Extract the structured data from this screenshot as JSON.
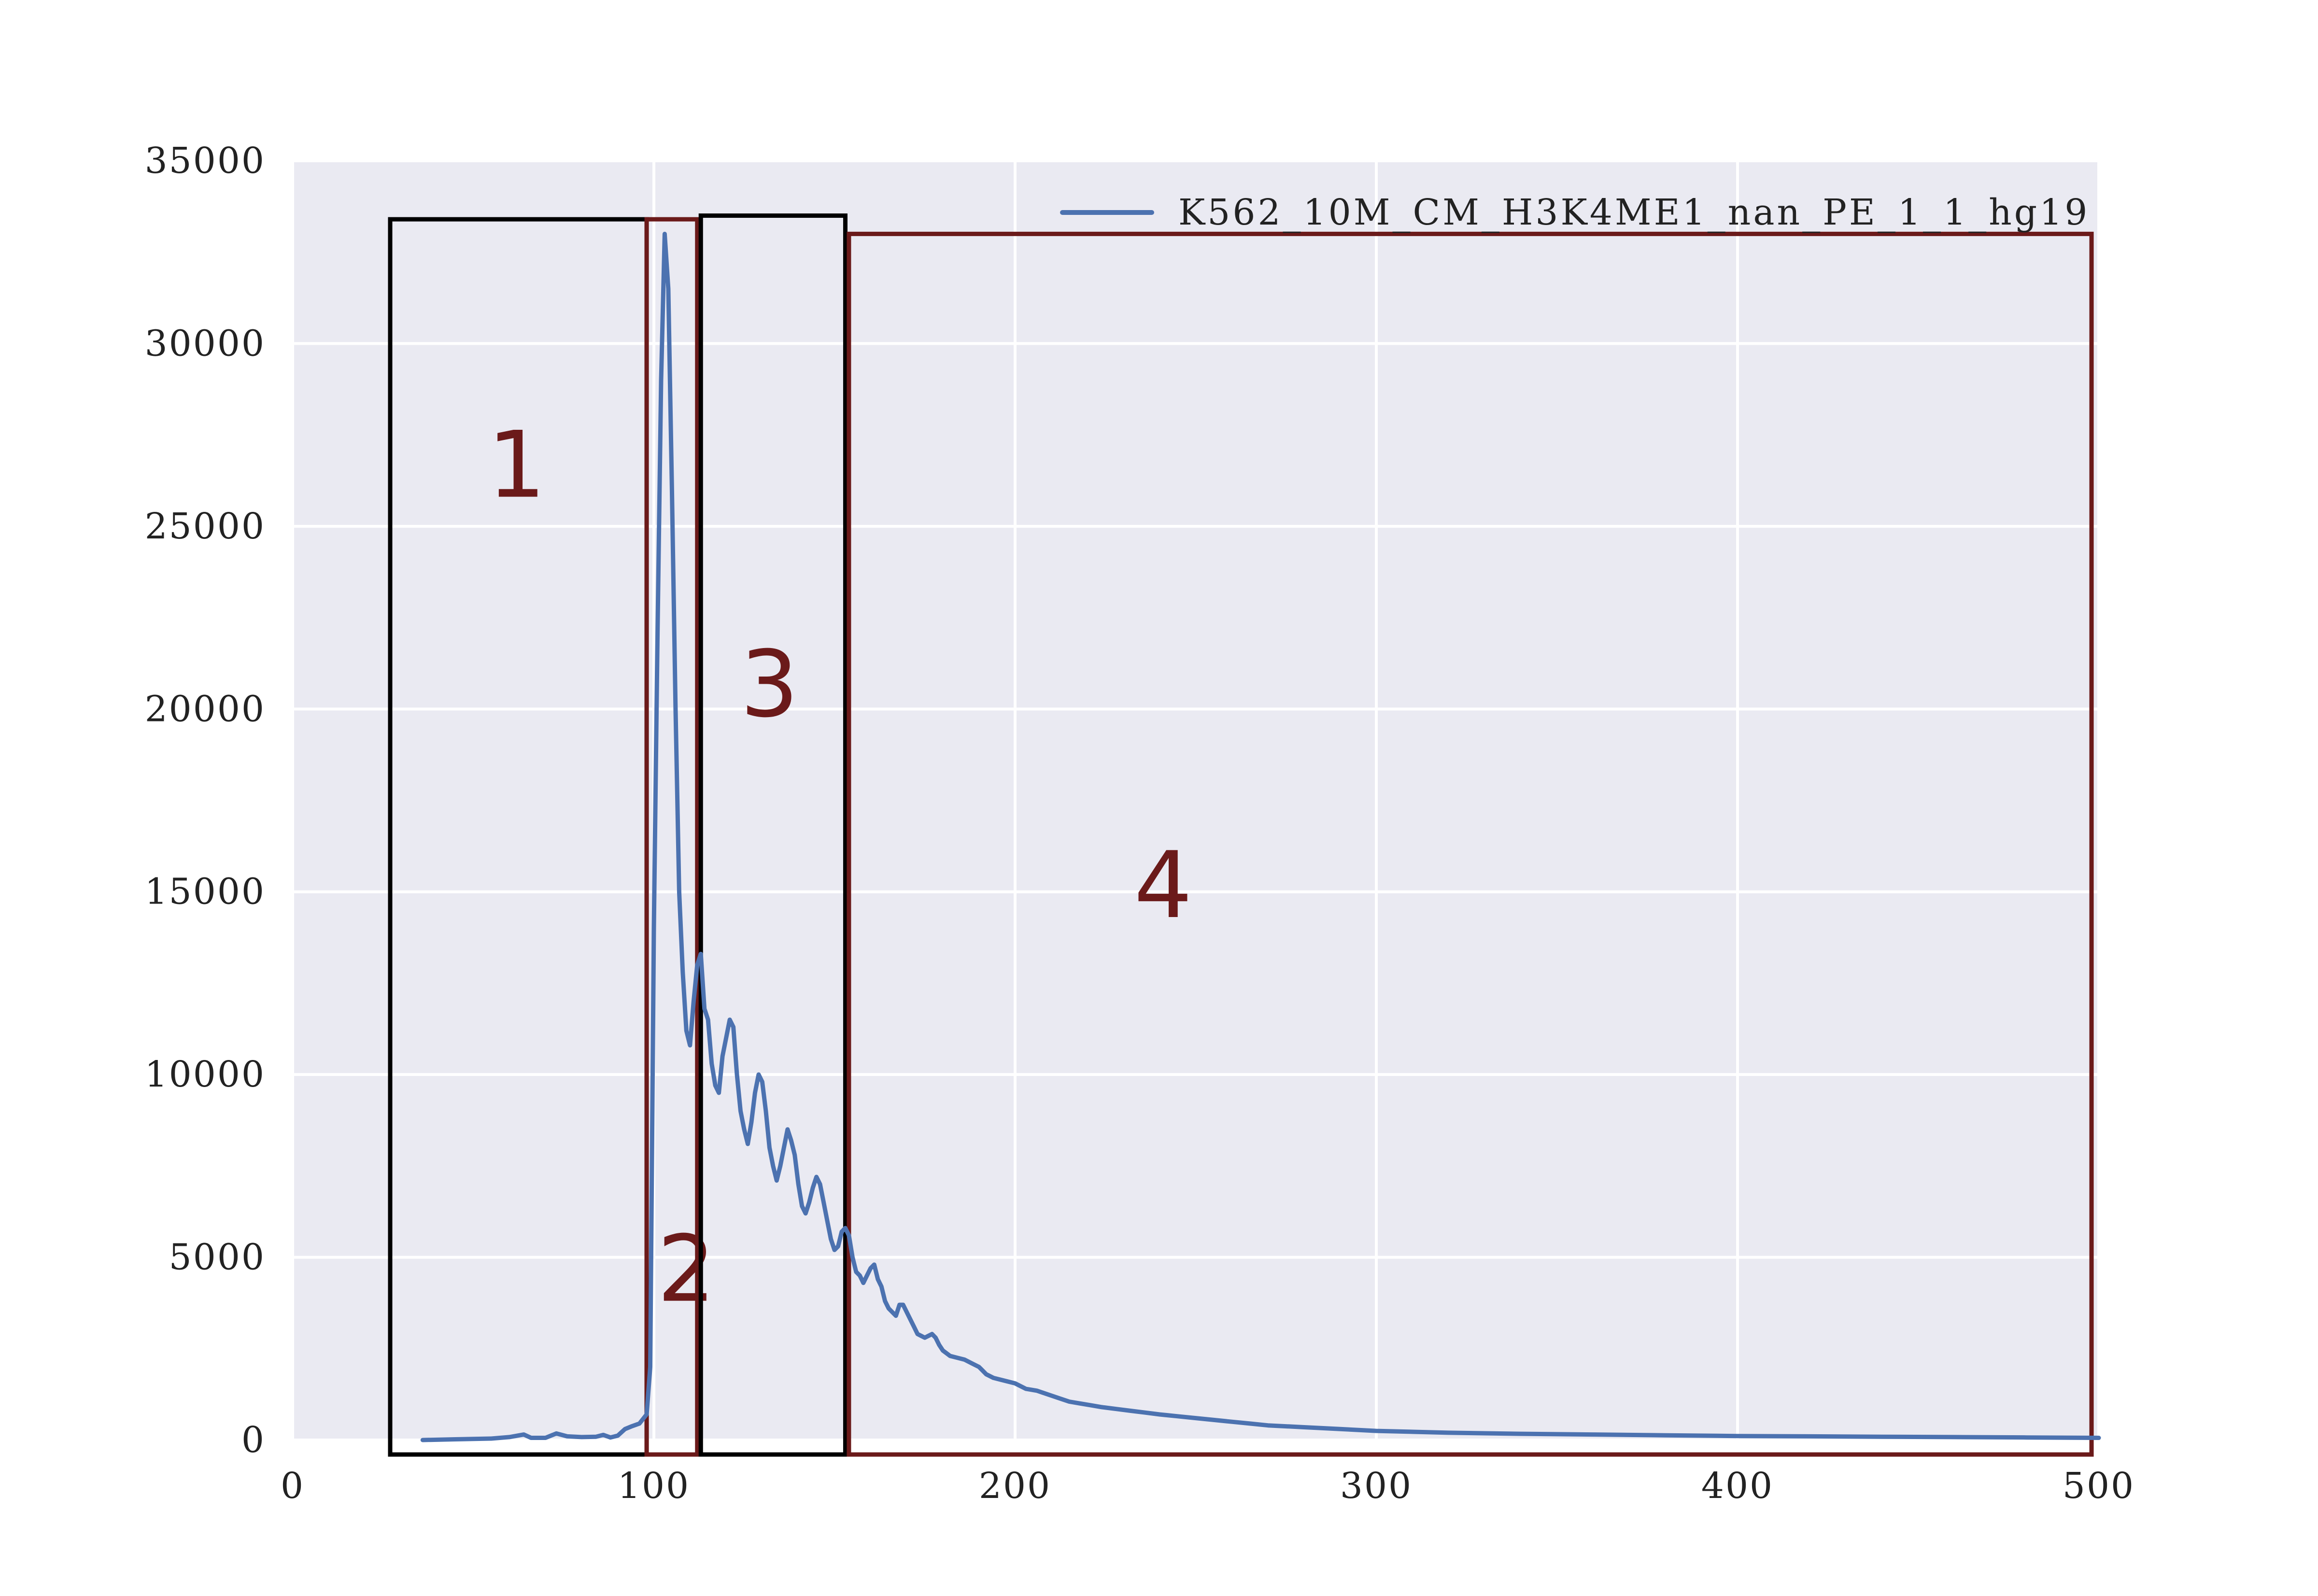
{
  "chart_data": {
    "type": "line",
    "title": "",
    "xlabel": "",
    "ylabel": "",
    "xlim": [
      0,
      500
    ],
    "ylim": [
      0,
      35000
    ],
    "xticks": [
      0,
      100,
      200,
      300,
      400,
      500
    ],
    "yticks": [
      0,
      5000,
      10000,
      15000,
      20000,
      25000,
      30000,
      35000
    ],
    "grid": true,
    "legend_position": "top-right",
    "colors": {
      "background": "#eaeaf2",
      "grid": "#ffffff",
      "line": "#4c72b0",
      "box_black": "#000000",
      "box_red": "#6b1a1a",
      "region_label": "#6b1a1a",
      "tick_label": "#222222"
    },
    "series": [
      {
        "name": "K562_10M_CM_H3K4ME1_nan_PE_1_1_hg19",
        "points": [
          [
            36,
            0
          ],
          [
            45,
            20
          ],
          [
            55,
            40
          ],
          [
            60,
            80
          ],
          [
            64,
            150
          ],
          [
            66,
            60
          ],
          [
            70,
            60
          ],
          [
            73,
            180
          ],
          [
            76,
            100
          ],
          [
            80,
            80
          ],
          [
            84,
            90
          ],
          [
            86,
            140
          ],
          [
            88,
            70
          ],
          [
            90,
            120
          ],
          [
            92,
            300
          ],
          [
            94,
            380
          ],
          [
            96,
            450
          ],
          [
            98,
            700
          ],
          [
            99,
            2000
          ],
          [
            100,
            14000
          ],
          [
            101,
            22000
          ],
          [
            102,
            29000
          ],
          [
            103,
            33000
          ],
          [
            104,
            31500
          ],
          [
            105,
            26000
          ],
          [
            106,
            20000
          ],
          [
            107,
            15000
          ],
          [
            108,
            12800
          ],
          [
            109,
            11200
          ],
          [
            110,
            10800
          ],
          [
            111,
            12000
          ],
          [
            112,
            13000
          ],
          [
            113,
            13300
          ],
          [
            114,
            11800
          ],
          [
            115,
            11500
          ],
          [
            116,
            10300
          ],
          [
            117,
            9700
          ],
          [
            118,
            9500
          ],
          [
            119,
            10500
          ],
          [
            120,
            11000
          ],
          [
            121,
            11500
          ],
          [
            122,
            11300
          ],
          [
            123,
            10000
          ],
          [
            124,
            9000
          ],
          [
            125,
            8500
          ],
          [
            126,
            8100
          ],
          [
            127,
            8700
          ],
          [
            128,
            9500
          ],
          [
            129,
            10000
          ],
          [
            130,
            9800
          ],
          [
            131,
            9000
          ],
          [
            132,
            8000
          ],
          [
            133,
            7500
          ],
          [
            134,
            7100
          ],
          [
            135,
            7500
          ],
          [
            136,
            8000
          ],
          [
            137,
            8500
          ],
          [
            138,
            8200
          ],
          [
            139,
            7800
          ],
          [
            140,
            7000
          ],
          [
            141,
            6400
          ],
          [
            142,
            6200
          ],
          [
            143,
            6500
          ],
          [
            144,
            6900
          ],
          [
            145,
            7200
          ],
          [
            146,
            7000
          ],
          [
            147,
            6500
          ],
          [
            148,
            6000
          ],
          [
            149,
            5500
          ],
          [
            150,
            5200
          ],
          [
            151,
            5300
          ],
          [
            152,
            5700
          ],
          [
            153,
            5800
          ],
          [
            154,
            5600
          ],
          [
            155,
            5000
          ],
          [
            156,
            4600
          ],
          [
            157,
            4500
          ],
          [
            158,
            4300
          ],
          [
            159,
            4500
          ],
          [
            160,
            4700
          ],
          [
            161,
            4800
          ],
          [
            162,
            4400
          ],
          [
            163,
            4200
          ],
          [
            164,
            3800
          ],
          [
            165,
            3600
          ],
          [
            166,
            3500
          ],
          [
            167,
            3400
          ],
          [
            168,
            3700
          ],
          [
            169,
            3700
          ],
          [
            170,
            3500
          ],
          [
            171,
            3300
          ],
          [
            172,
            3100
          ],
          [
            173,
            2900
          ],
          [
            174,
            2850
          ],
          [
            175,
            2800
          ],
          [
            176,
            2850
          ],
          [
            177,
            2900
          ],
          [
            178,
            2800
          ],
          [
            179,
            2600
          ],
          [
            180,
            2450
          ],
          [
            182,
            2300
          ],
          [
            184,
            2250
          ],
          [
            186,
            2200
          ],
          [
            188,
            2100
          ],
          [
            190,
            2000
          ],
          [
            192,
            1800
          ],
          [
            194,
            1700
          ],
          [
            196,
            1650
          ],
          [
            198,
            1600
          ],
          [
            200,
            1550
          ],
          [
            203,
            1400
          ],
          [
            206,
            1350
          ],
          [
            209,
            1250
          ],
          [
            212,
            1150
          ],
          [
            215,
            1050
          ],
          [
            218,
            1000
          ],
          [
            221,
            950
          ],
          [
            224,
            900
          ],
          [
            228,
            850
          ],
          [
            232,
            800
          ],
          [
            236,
            750
          ],
          [
            240,
            700
          ],
          [
            245,
            650
          ],
          [
            250,
            600
          ],
          [
            255,
            550
          ],
          [
            260,
            500
          ],
          [
            265,
            450
          ],
          [
            270,
            400
          ],
          [
            280,
            350
          ],
          [
            290,
            300
          ],
          [
            300,
            250
          ],
          [
            320,
            200
          ],
          [
            340,
            170
          ],
          [
            360,
            150
          ],
          [
            380,
            130
          ],
          [
            400,
            110
          ],
          [
            420,
            100
          ],
          [
            440,
            90
          ],
          [
            460,
            80
          ],
          [
            480,
            70
          ],
          [
            500,
            60
          ]
        ]
      }
    ],
    "regions": [
      {
        "label": "1",
        "x_start": 27,
        "x_end": 98,
        "y_top": 33400,
        "color_role": "box_black",
        "label_x": 62,
        "label_y": 26500
      },
      {
        "label": "2",
        "x_start": 98,
        "x_end": 112,
        "y_top": 33400,
        "color_role": "box_red",
        "label_x": 109,
        "label_y": 4500
      },
      {
        "label": "3",
        "x_start": 113,
        "x_end": 153,
        "y_top": 33500,
        "color_role": "box_black",
        "label_x": 132,
        "label_y": 20500
      },
      {
        "label": "4",
        "x_start": 154,
        "x_end": 498,
        "y_top": 33000,
        "color_role": "box_red",
        "label_x": 241,
        "label_y": 15000
      }
    ]
  }
}
